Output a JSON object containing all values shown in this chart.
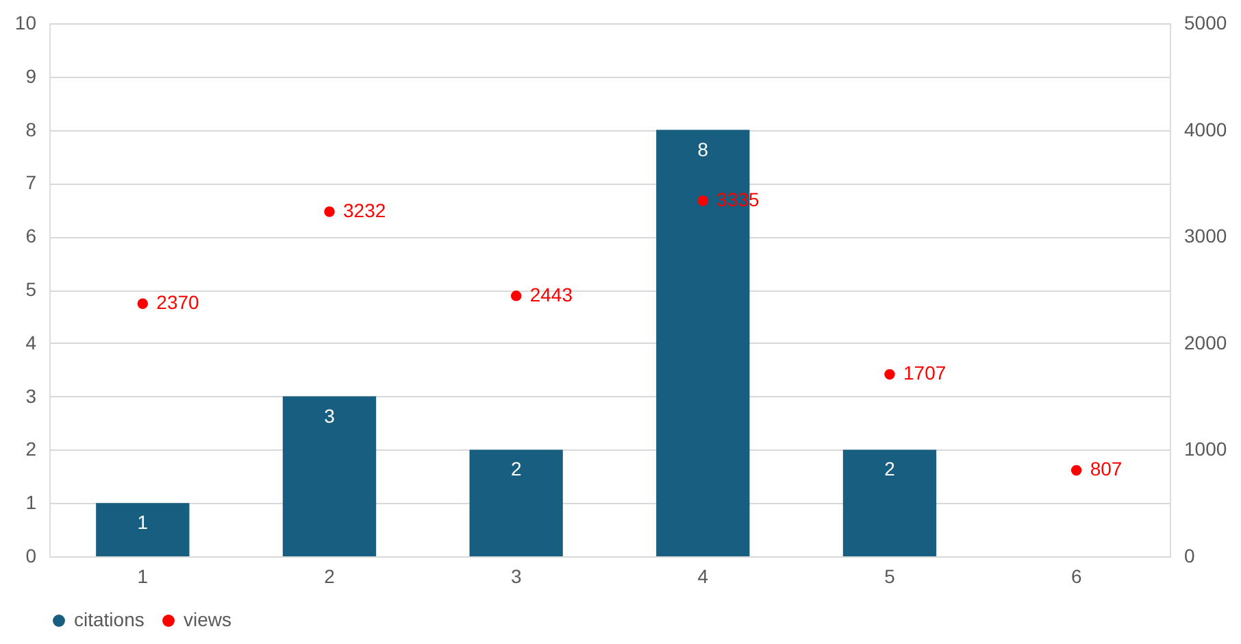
{
  "chart_data": {
    "type": "bar",
    "categories": [
      "1",
      "2",
      "3",
      "4",
      "5",
      "6"
    ],
    "series": [
      {
        "name": "citations",
        "color": "#185e80",
        "values": [
          1,
          3,
          2,
          8,
          2,
          null
        ]
      },
      {
        "name": "views",
        "type": "scatter",
        "axis": "y2",
        "color": "#ff0000",
        "marker": "circle",
        "values": [
          2370,
          3232,
          2443,
          3335,
          1707,
          807
        ]
      }
    ],
    "ylim": [
      0,
      10
    ],
    "yticks": [
      0,
      1,
      2,
      3,
      4,
      5,
      6,
      7,
      8,
      9,
      10
    ],
    "y2lim": [
      0,
      5000
    ],
    "y2ticks": [
      0,
      1000,
      2000,
      3000,
      4000,
      5000
    ],
    "grid": "y",
    "legend": "bottom",
    "data_labels": true
  }
}
